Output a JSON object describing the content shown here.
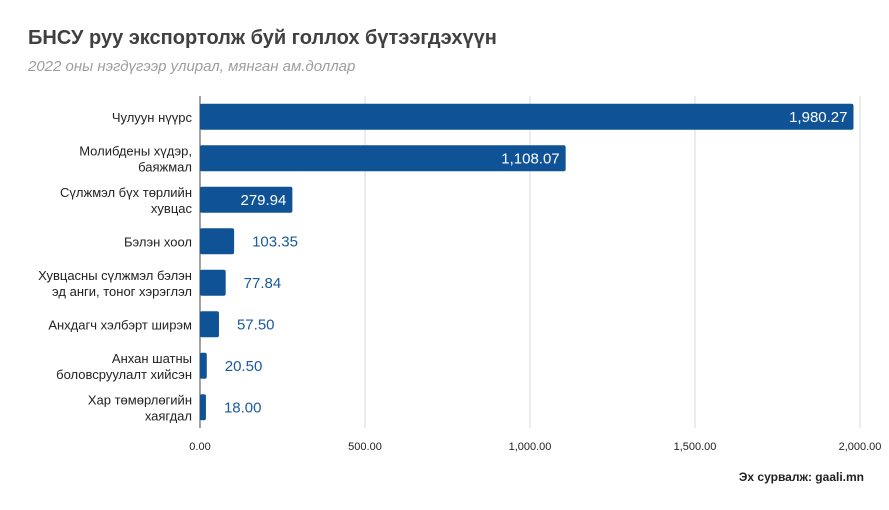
{
  "title": "БНСУ руу экспортолж буй голлох бүтээгдэхүүн",
  "subtitle": "2022 оны нэгдүгээр улирал, мянган ам.доллар",
  "source": "Эх сурвалж: gaali.mn",
  "colors": {
    "bar": "#0f5396",
    "grid": "#d9d9d9",
    "axis": "#444444",
    "label_outside": "#1a5aa0"
  },
  "chart_data": {
    "type": "bar",
    "orientation": "horizontal",
    "title": "БНСУ руу экспортолж буй голлох бүтээгдэхүүн",
    "subtitle": "2022 оны нэгдүгээр улирал, мянган ам.доллар",
    "categories": [
      [
        "Чулуун нүүрс"
      ],
      [
        "Молибдены хүдэр,",
        "баяжмал"
      ],
      [
        "Сүлжмэл бүх төрлийн",
        "хувцас"
      ],
      [
        "Бэлэн хоол"
      ],
      [
        "Хувцасны сүлжмэл бэлэн",
        "эд анги, тоног хэрэглэл"
      ],
      [
        "Анхдагч хэлбэрт ширэм"
      ],
      [
        "Анхан шатны",
        "боловсруулалт хийсэн"
      ],
      [
        "Хар төмөрлөгийн",
        "хаягдал"
      ]
    ],
    "values": [
      1980.27,
      1108.07,
      279.94,
      103.35,
      77.84,
      57.5,
      20.5,
      18.0
    ],
    "value_labels": [
      "1,980.27",
      "1,108.07",
      "279.94",
      "103.35",
      "77.84",
      "57.50",
      "20.50",
      "18.00"
    ],
    "xlim": [
      0,
      2000
    ],
    "x_ticks": [
      0,
      500,
      1000,
      1500,
      2000
    ],
    "x_tick_labels": [
      "0.00",
      "500.00",
      "1,000.00",
      "1,500.00",
      "2,000.00"
    ],
    "grid": true,
    "legend": "none"
  }
}
